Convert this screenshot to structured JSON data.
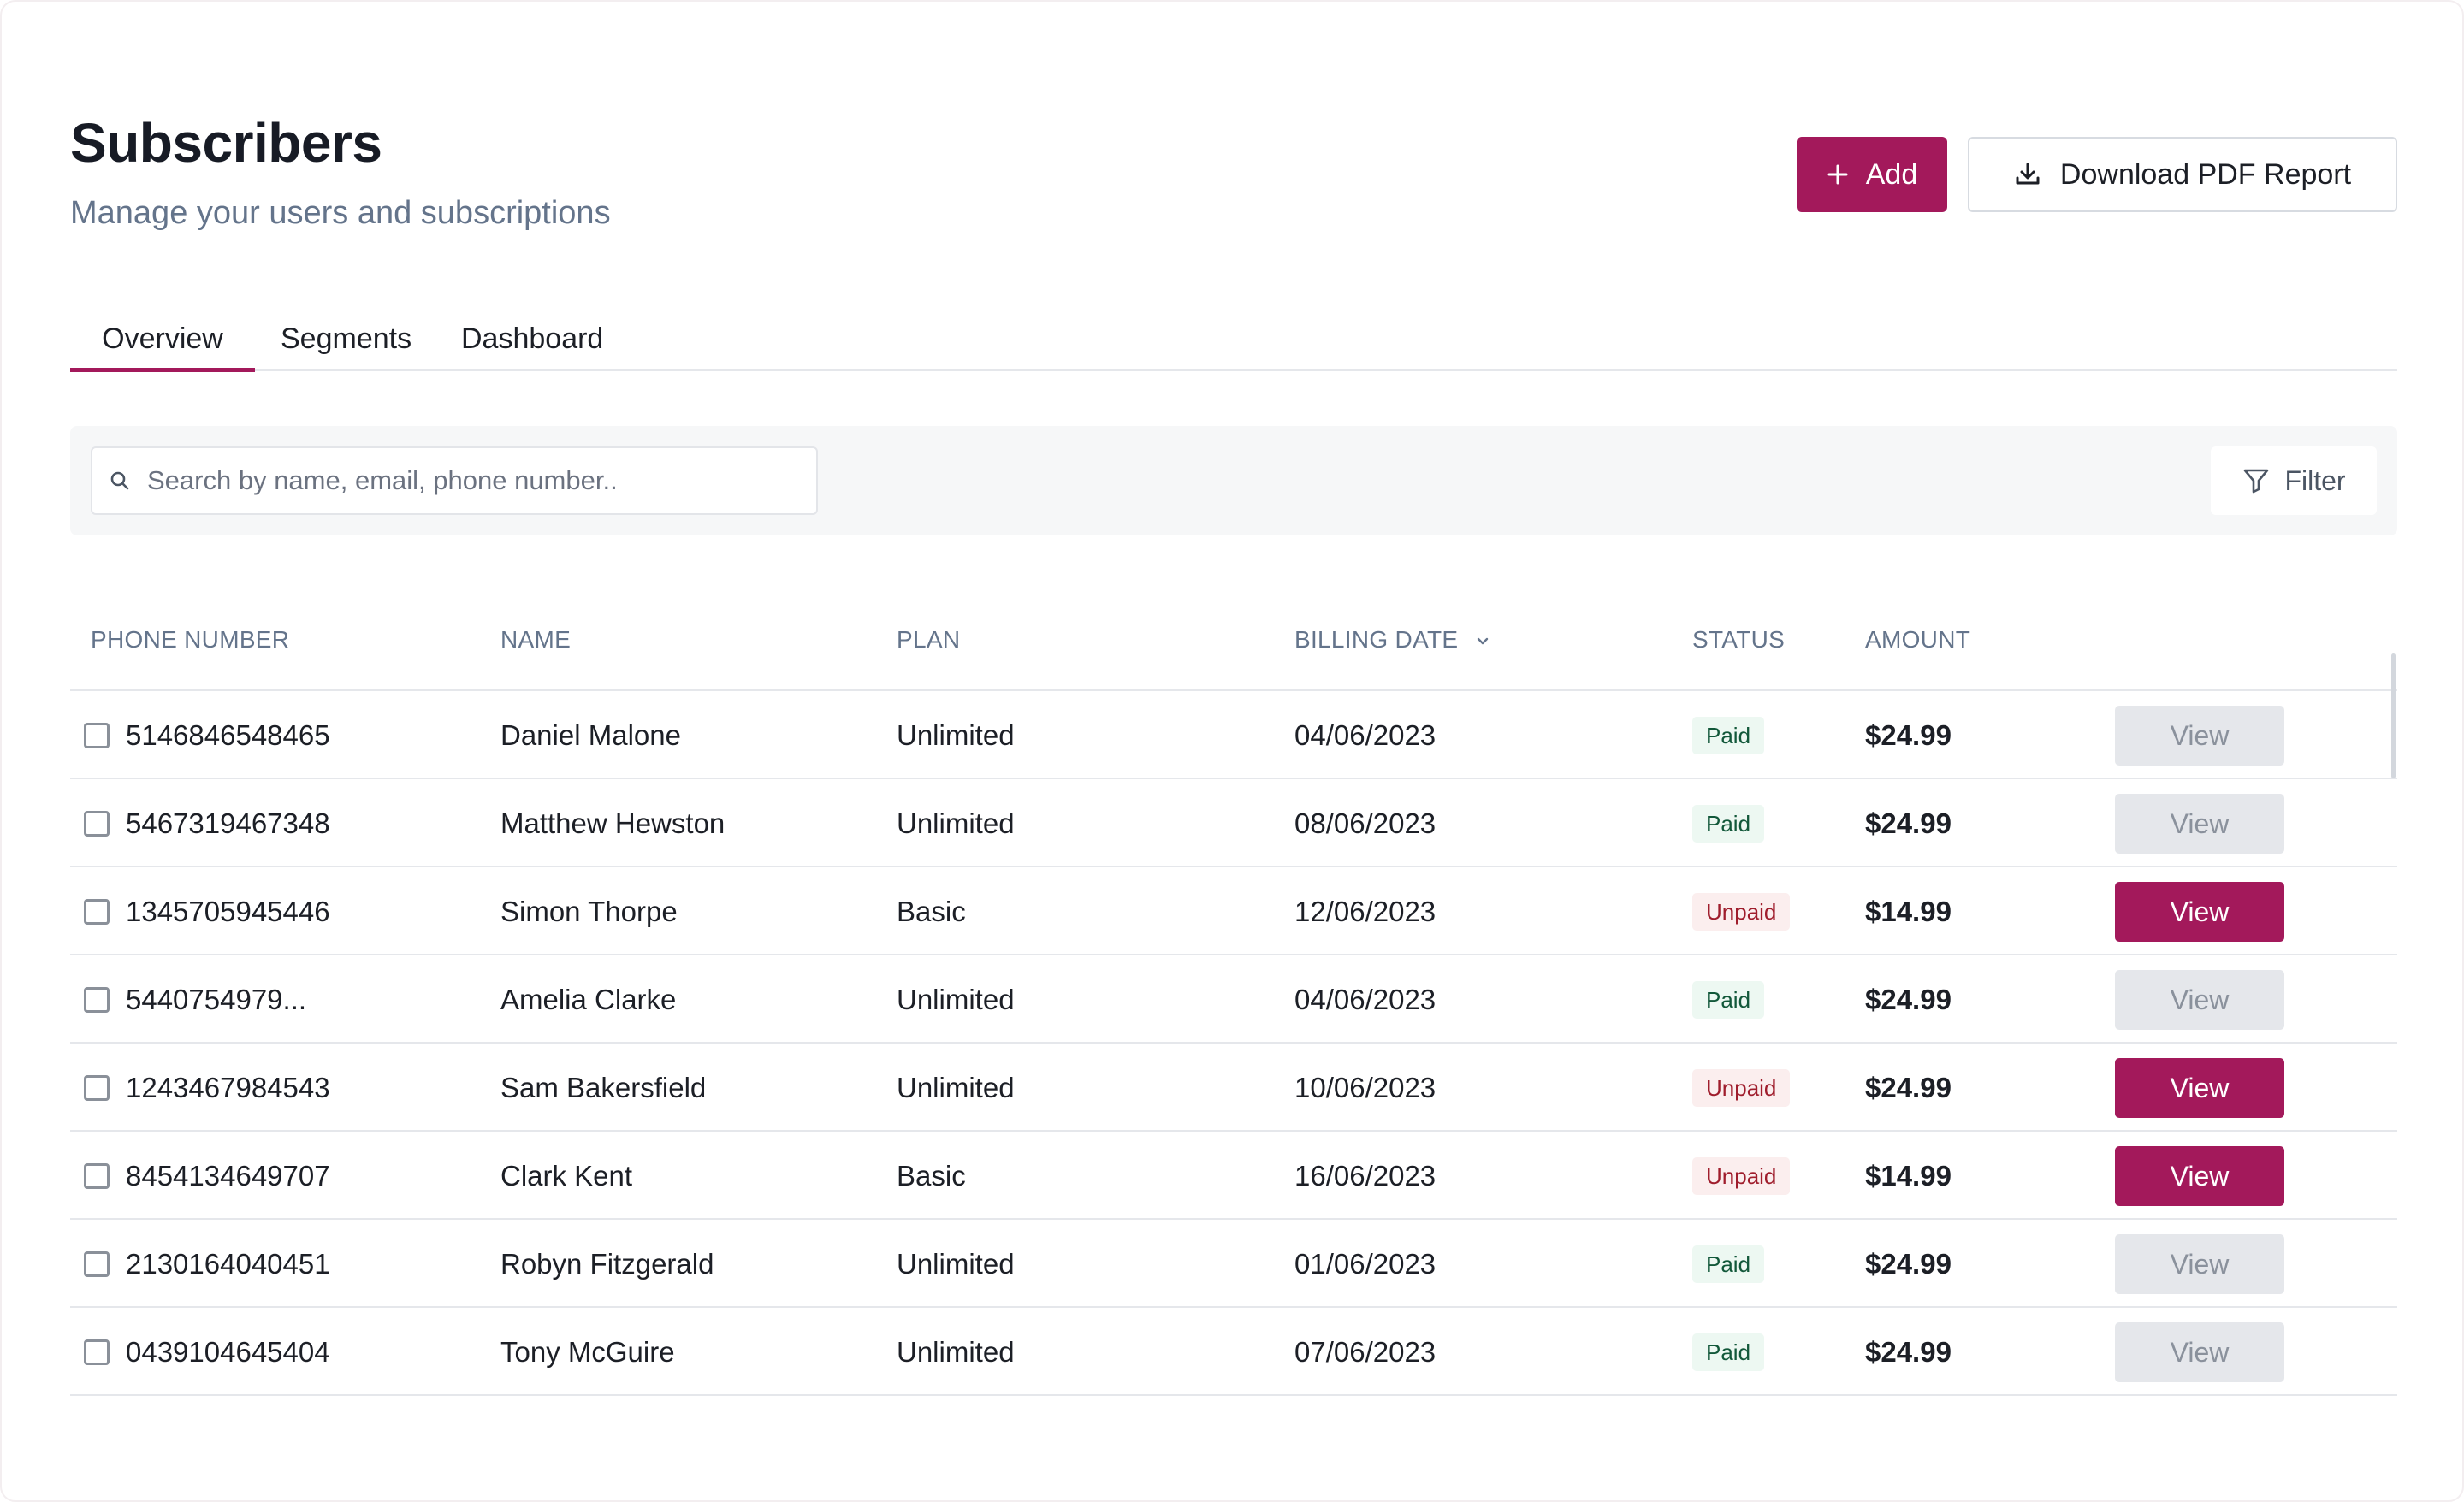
{
  "header": {
    "title": "Subscribers",
    "subtitle": "Manage your users and subscriptions",
    "add_label": "Add",
    "download_label": "Download PDF Report"
  },
  "tabs": [
    {
      "label": "Overview",
      "active": true
    },
    {
      "label": "Segments",
      "active": false
    },
    {
      "label": "Dashboard",
      "active": false
    }
  ],
  "toolbar": {
    "search_placeholder": "Search by name, email, phone number..",
    "filter_label": "Filter"
  },
  "table": {
    "columns": {
      "phone": "PHONE NUMBER",
      "name": "NAME",
      "plan": "PLAN",
      "billing_date": "BILLING DATE",
      "status": "STATUS",
      "amount": "AMOUNT"
    },
    "sort_column": "billing_date",
    "view_label": "View",
    "rows": [
      {
        "phone": "5146846548465",
        "name": "Daniel Malone",
        "plan": "Unlimited",
        "billing_date": "04/06/2023",
        "status": "Paid",
        "amount": "$24.99"
      },
      {
        "phone": "5467319467348",
        "name": "Matthew Hewston",
        "plan": "Unlimited",
        "billing_date": "08/06/2023",
        "status": "Paid",
        "amount": "$24.99"
      },
      {
        "phone": "1345705945446",
        "name": "Simon Thorpe",
        "plan": "Basic",
        "billing_date": "12/06/2023",
        "status": "Unpaid",
        "amount": "$14.99"
      },
      {
        "phone": "5440754979...",
        "name": "Amelia Clarke",
        "plan": "Unlimited",
        "billing_date": "04/06/2023",
        "status": "Paid",
        "amount": "$24.99"
      },
      {
        "phone": "1243467984543",
        "name": "Sam Bakersfield",
        "plan": "Unlimited",
        "billing_date": "10/06/2023",
        "status": "Unpaid",
        "amount": "$24.99"
      },
      {
        "phone": "8454134649707",
        "name": "Clark Kent",
        "plan": "Basic",
        "billing_date": "16/06/2023",
        "status": "Unpaid",
        "amount": "$14.99"
      },
      {
        "phone": "2130164040451",
        "name": "Robyn Fitzgerald",
        "plan": "Unlimited",
        "billing_date": "01/06/2023",
        "status": "Paid",
        "amount": "$24.99"
      },
      {
        "phone": "0439104645404",
        "name": "Tony McGuire",
        "plan": "Unlimited",
        "billing_date": "07/06/2023",
        "status": "Paid",
        "amount": "$24.99"
      }
    ]
  },
  "colors": {
    "accent": "#a3195b",
    "paid_bg": "#edf8f2",
    "paid_text": "#12583a",
    "unpaid_bg": "#fbeeee",
    "unpaid_text": "#9f1d2c"
  },
  "icons": {
    "add": "plus-icon",
    "download": "download-icon",
    "search": "search-icon",
    "filter": "filter-icon",
    "sort": "chevron-down-icon"
  }
}
